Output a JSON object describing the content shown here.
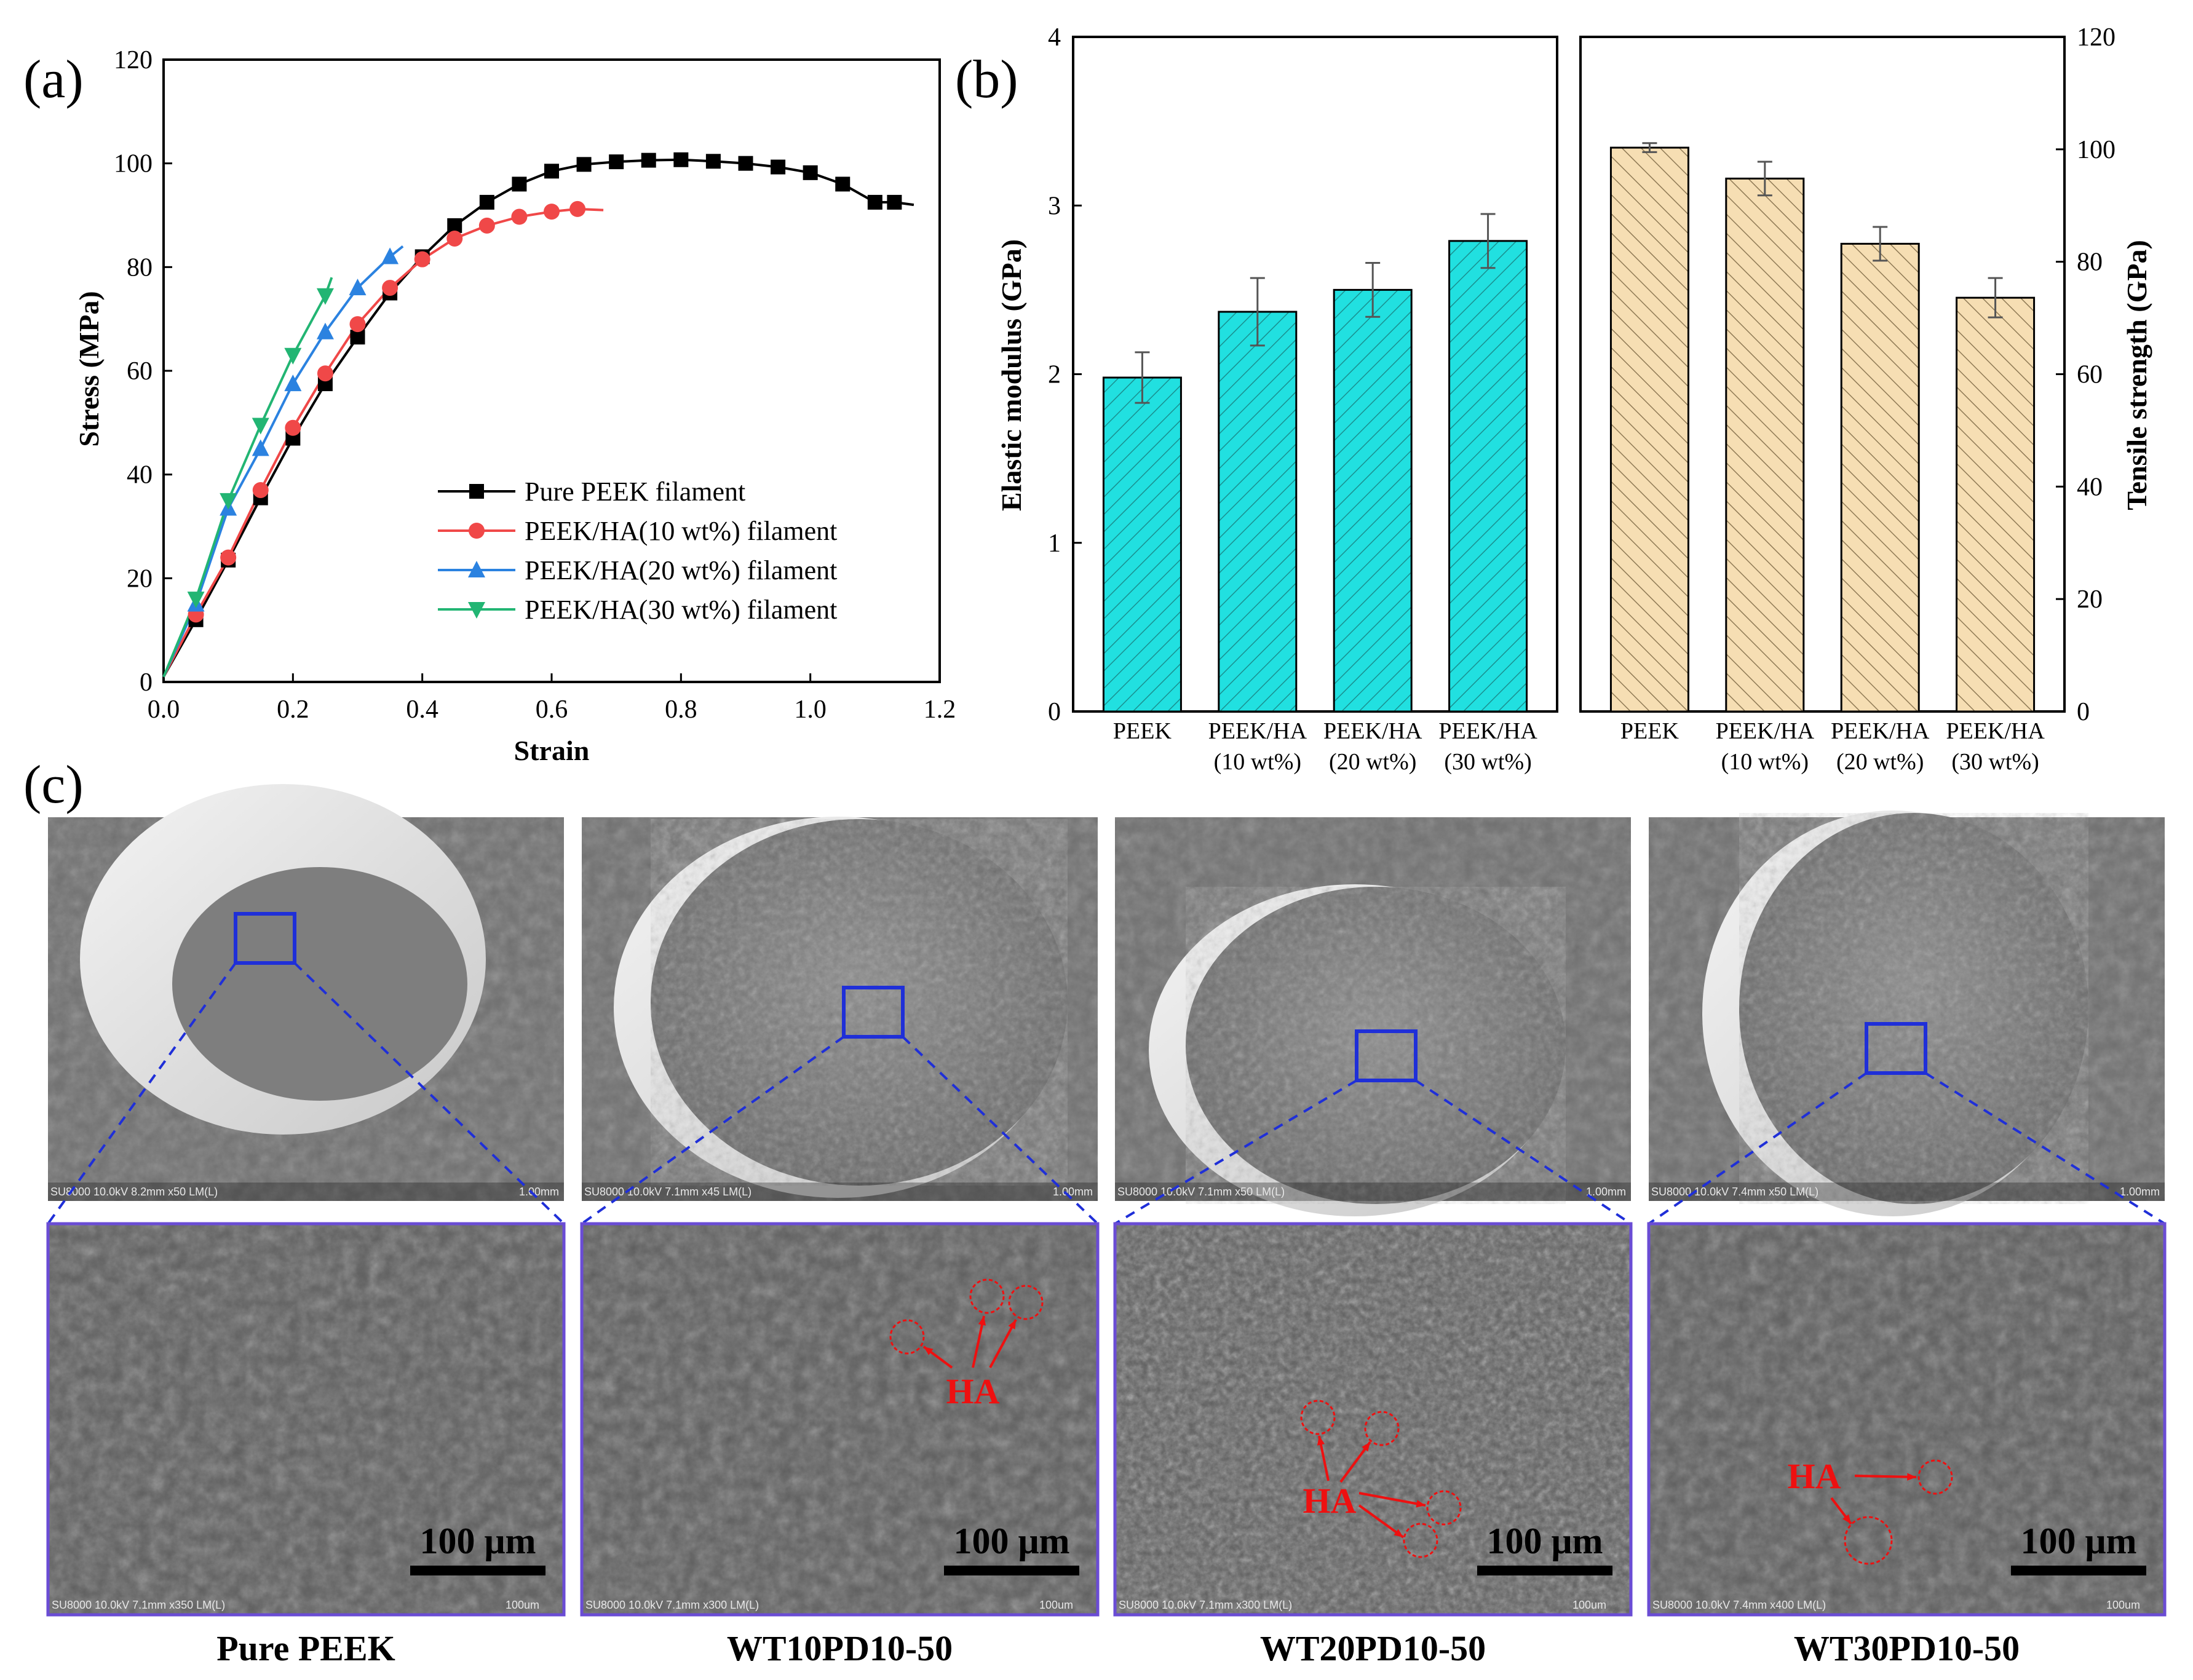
{
  "panel_labels": {
    "a": "(a)",
    "b": "(b)",
    "c": "(c)"
  },
  "colors": {
    "pure": "#000000",
    "ha10": "#f04848",
    "ha20": "#2b82e0",
    "ha30": "#22b573",
    "modulus_fill": "#21e0e0",
    "strength_fill": "#f6deb3",
    "box": "#1f2fd8",
    "frame": "#6a4cd4",
    "annotation": "#ee1010"
  },
  "chart_data": [
    {
      "type": "line",
      "xlabel": "Strain",
      "ylabel": "Stress (MPa)",
      "xlim": [
        0,
        1.2
      ],
      "ylim": [
        0,
        120
      ],
      "xticks": [
        "0.0",
        "0.2",
        "0.4",
        "0.6",
        "0.8",
        "1.0",
        "1.2"
      ],
      "yticks": [
        "0",
        "20",
        "40",
        "60",
        "80",
        "100",
        "120"
      ],
      "legend_position": "bottom-right",
      "series": [
        {
          "name": "Pure PEEK filament",
          "marker": "square",
          "color": "#000000",
          "x": [
            0,
            0.05,
            0.1,
            0.15,
            0.2,
            0.25,
            0.3,
            0.35,
            0.4,
            0.45,
            0.5,
            0.55,
            0.6,
            0.65,
            0.7,
            0.75,
            0.8,
            0.85,
            0.9,
            0.95,
            1.0,
            1.05,
            1.1,
            1.13,
            1.16
          ],
          "y": [
            1,
            12,
            23.5,
            35.5,
            47,
            57.5,
            66.5,
            75,
            82,
            88,
            92.5,
            96,
            98.5,
            99.8,
            100.3,
            100.6,
            100.7,
            100.4,
            100,
            99.3,
            98.2,
            96,
            92.5,
            92.5,
            92
          ]
        },
        {
          "name": "PEEK/HA(10 wt%) filament",
          "marker": "circle",
          "color": "#f04848",
          "x": [
            0,
            0.05,
            0.1,
            0.15,
            0.2,
            0.25,
            0.3,
            0.35,
            0.4,
            0.45,
            0.5,
            0.55,
            0.6,
            0.64,
            0.68
          ],
          "y": [
            1,
            13,
            24,
            37,
            49,
            59.5,
            69,
            76,
            81.5,
            85.5,
            88,
            89.7,
            90.7,
            91.2,
            91
          ]
        },
        {
          "name": "PEEK/HA(20 wt%) filament",
          "marker": "triangle-up",
          "color": "#2b82e0",
          "x": [
            0,
            0.05,
            0.1,
            0.15,
            0.2,
            0.25,
            0.3,
            0.35,
            0.37
          ],
          "y": [
            1,
            15,
            33.5,
            45,
            57.5,
            67.5,
            76,
            82,
            84
          ]
        },
        {
          "name": "PEEK/HA(30 wt%) filament",
          "marker": "triangle-down",
          "color": "#22b573",
          "x": [
            0,
            0.05,
            0.1,
            0.15,
            0.2,
            0.25,
            0.26
          ],
          "y": [
            1,
            16,
            35,
            49.5,
            63,
            74.5,
            78
          ]
        }
      ]
    },
    {
      "type": "bar",
      "ylabel": "Elastic modulus (GPa)",
      "ylim": [
        0,
        4
      ],
      "yticks": [
        "0",
        "1",
        "2",
        "3",
        "4"
      ],
      "categories": [
        [
          "PEEK"
        ],
        [
          "PEEK/HA",
          "(10 wt%)"
        ],
        [
          "PEEK/HA",
          "(20 wt%)"
        ],
        [
          "PEEK/HA",
          "(30 wt%)"
        ]
      ],
      "values": [
        1.98,
        2.37,
        2.5,
        2.79
      ],
      "errors": [
        0.15,
        0.2,
        0.16,
        0.16
      ]
    },
    {
      "type": "bar",
      "ylabel": "Tensile strength (GPa)",
      "ylim": [
        0,
        120
      ],
      "yticks": [
        "0",
        "20",
        "40",
        "60",
        "80",
        "100",
        "120"
      ],
      "axis_side": "right",
      "categories": [
        [
          "PEEK"
        ],
        [
          "PEEK/HA",
          "(10 wt%)"
        ],
        [
          "PEEK/HA",
          "(20 wt%)"
        ],
        [
          "PEEK/HA",
          "(30 wt%)"
        ]
      ],
      "values": [
        100.3,
        94.8,
        83.2,
        73.6
      ],
      "errors": [
        0.8,
        3,
        3,
        3.5
      ]
    }
  ],
  "sem": {
    "overview": [
      {
        "meta": "SU8000 10.0kV 8.2mm x50 LM(L)",
        "scale": "1.00mm"
      },
      {
        "meta": "SU8000 10.0kV 7.1mm x45 LM(L)",
        "scale": "1.00mm"
      },
      {
        "meta": "SU8000 10.0kV 7.1mm x50 LM(L)",
        "scale": "1.00mm"
      },
      {
        "meta": "SU8000 10.0kV 7.4mm x50 LM(L)",
        "scale": "1.00mm"
      }
    ],
    "zoom": [
      {
        "meta": "SU8000 10.0kV 7.1mm x350 LM(L)",
        "scale": "100um"
      },
      {
        "meta": "SU8000 10.0kV 7.1mm x300 LM(L)",
        "scale": "100um"
      },
      {
        "meta": "SU8000 10.0kV 7.1mm x300 LM(L)",
        "scale": "100um"
      },
      {
        "meta": "SU8000 10.0kV 7.4mm x400 LM(L)",
        "scale": "100um"
      }
    ],
    "scale_bar_label": "100 μm",
    "ha_label": "HA",
    "sample_names": [
      "Pure PEEK",
      "WT10PD10-50",
      "WT20PD10-50",
      "WT30PD10-50"
    ]
  }
}
